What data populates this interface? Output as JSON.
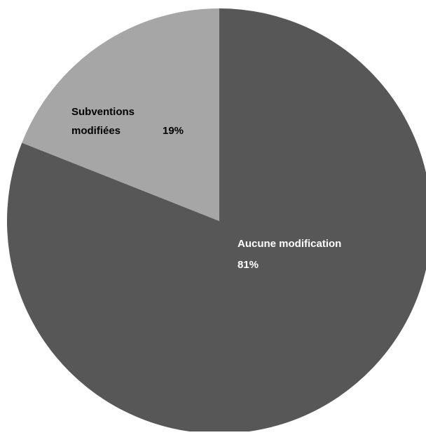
{
  "chart_data": {
    "type": "pie",
    "title": "",
    "slices": [
      {
        "label_lines": [
          "Aucune modification"
        ],
        "value_label": "81%",
        "value": 81,
        "color": "#575757",
        "text_color": "#ffffff"
      },
      {
        "label_lines": [
          "Subventions",
          "modifiées"
        ],
        "value_label": "19%",
        "value": 19,
        "color": "#a6a6a6",
        "text_color": "#000000"
      }
    ],
    "start_angle_deg": 0,
    "direction": "clockwise",
    "legend": "none"
  }
}
